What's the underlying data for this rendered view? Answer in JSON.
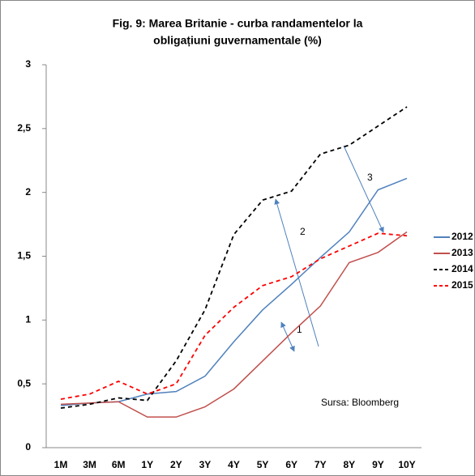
{
  "chart_data": {
    "type": "line",
    "title": [
      "Fig. 9: Marea Britanie - curba randamentelor la",
      "obligațiuni guvernamentale (%)"
    ],
    "categories": [
      "1M",
      "3M",
      "6M",
      "1Y",
      "2Y",
      "3Y",
      "4Y",
      "5Y",
      "6Y",
      "7Y",
      "8Y",
      "9Y",
      "10Y"
    ],
    "series": [
      {
        "name": "2012",
        "color": "#4f81bd",
        "dash": false,
        "values": [
          0.33,
          0.35,
          0.36,
          0.42,
          0.44,
          0.56,
          0.83,
          1.08,
          1.28,
          1.49,
          1.69,
          2.02,
          2.11
        ]
      },
      {
        "name": "2013",
        "color": "#c0504d",
        "dash": false,
        "values": [
          0.34,
          0.35,
          0.36,
          0.24,
          0.24,
          0.32,
          0.46,
          0.68,
          0.9,
          1.11,
          1.45,
          1.53,
          1.69
        ]
      },
      {
        "name": "2014",
        "color": "#000000",
        "dash": true,
        "values": [
          0.31,
          0.34,
          0.39,
          0.37,
          0.68,
          1.08,
          1.67,
          1.94,
          2.01,
          2.3,
          2.37,
          2.52,
          2.67
        ]
      },
      {
        "name": "2015",
        "color": "#ff0000",
        "dash": true,
        "values": [
          0.38,
          0.42,
          0.52,
          0.42,
          0.5,
          0.88,
          1.1,
          1.27,
          1.34,
          1.48,
          1.58,
          1.68,
          1.66
        ]
      }
    ],
    "ylim": [
      0,
      3
    ],
    "yticks": [
      0,
      {
        "value": 0.5,
        "label": "0,5"
      },
      1,
      {
        "value": 1.5,
        "label": "1,5"
      },
      2,
      {
        "value": 2.5,
        "label": "2,5"
      },
      3
    ],
    "legend": "right",
    "annotations": [
      "1",
      "2",
      "3"
    ],
    "source": "Sursa: Bloomberg"
  }
}
